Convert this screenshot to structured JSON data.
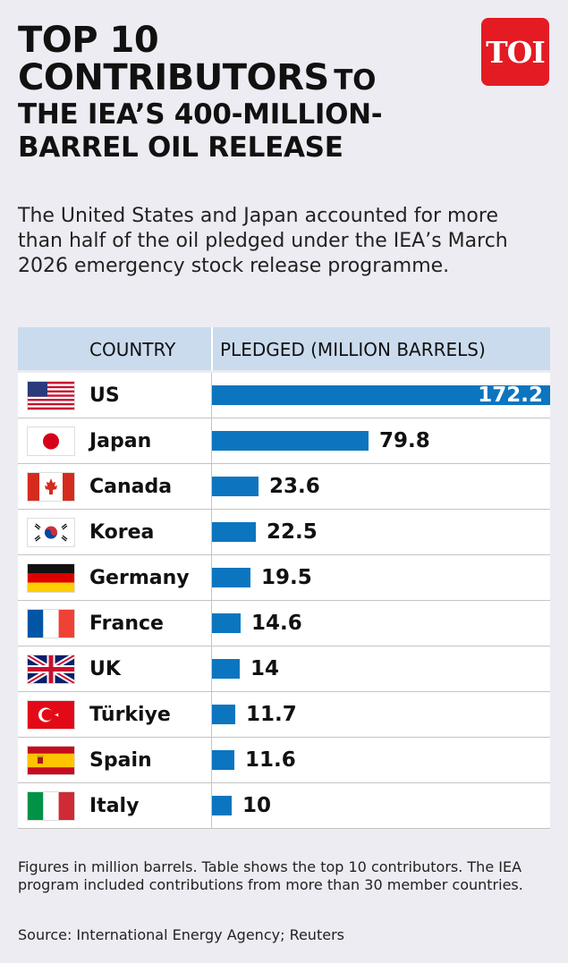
{
  "title": {
    "line1": "TOP 10",
    "line2_big": "CONTRIBUTORS",
    "line2_small": "TO",
    "line3": "THE IEA’S 400-MILLION-",
    "line4": "BARREL OIL RELEASE"
  },
  "logo": "TOI",
  "subtitle": "The United States and Japan accounted for more than half of the oil pledged under the IEA’s March 2026 emergency stock release programme.",
  "table": {
    "col_country": "COUNTRY",
    "col_pledged": "PLEDGED (MILLION BARRELS)"
  },
  "chart_data": {
    "type": "bar",
    "orientation": "horizontal",
    "categories": [
      "US",
      "Japan",
      "Canada",
      "Korea",
      "Germany",
      "France",
      "UK",
      "Türkiye",
      "Spain",
      "Italy"
    ],
    "values": [
      172.2,
      79.8,
      23.6,
      22.5,
      19.5,
      14.6,
      14,
      11.7,
      11.6,
      10
    ],
    "value_labels": [
      "172.2",
      "79.8",
      "23.6",
      "22.5",
      "19.5",
      "14.6",
      "14",
      "11.7",
      "11.6",
      "10"
    ],
    "flags": [
      "us-flag-icon",
      "japan-flag-icon",
      "canada-flag-icon",
      "korea-flag-icon",
      "germany-flag-icon",
      "france-flag-icon",
      "uk-flag-icon",
      "turkiye-flag-icon",
      "spain-flag-icon",
      "italy-flag-icon"
    ],
    "bar_color": "#0c75c0",
    "xlim": [
      0,
      172.2
    ]
  },
  "footnote": "Figures in million barrels. Table shows the top 10 contributors. The IEA program included contributions from more than 30 member countries.",
  "source": "Source: International Energy Agency; Reuters"
}
